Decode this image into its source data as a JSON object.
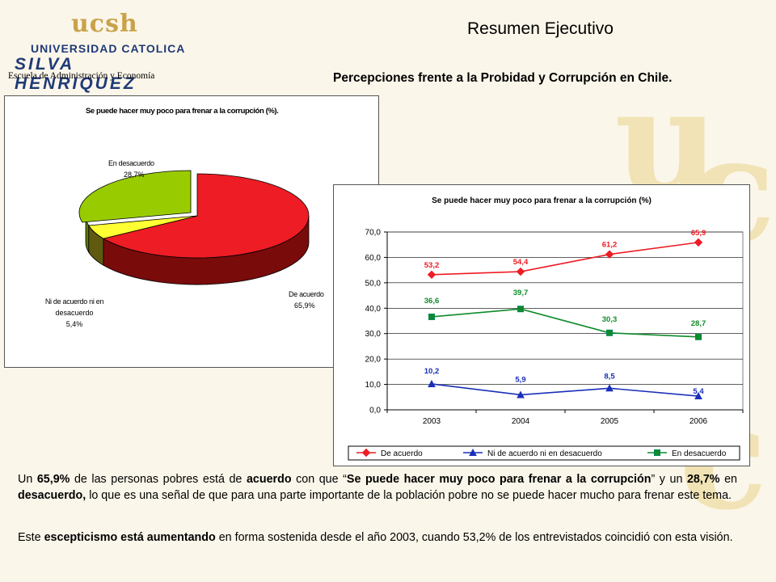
{
  "header": {
    "logo_top": "ucsh",
    "logo_univ": "UNIVERSIDAD CATOLICA",
    "logo_name": "SILVA HENRIQUEZ",
    "school": "Escuela de Administración y Economía",
    "title": "Resumen Ejecutivo",
    "subtitle": "Percepciones frente a la Probidad y Corrupción en Chile."
  },
  "colors": {
    "acuerdo": "#ee1c24",
    "acuerdo_dark": "#7a0b0b",
    "ni": "#1a2fb8",
    "ni_dark": "#5f5a10",
    "ni_pie": "#ffff33",
    "desacuerdo": "#0f8a2a",
    "desacuerdo_pie": "#99cc00",
    "desacuerdo_pie_dark": "#5d7a00"
  },
  "chart_data": [
    {
      "type": "pie",
      "title": "Se puede hacer muy poco para frenar a la corrupción (%).",
      "slices": [
        {
          "label": "De acuerdo",
          "value": 65.9,
          "value_label": "65,9%"
        },
        {
          "label": "Ni de acuerdo ni en desacuerdo",
          "label_lines": [
            "Ni de acuerdo ni en",
            "desacuerdo"
          ],
          "value": 5.4,
          "value_label": "5,4%"
        },
        {
          "label": "En desacuerdo",
          "value": 28.7,
          "value_label": "28,7%"
        }
      ]
    },
    {
      "type": "line",
      "title": "Se puede hacer muy poco para frenar a la corrupción (%)",
      "categories": [
        "2003",
        "2004",
        "2005",
        "2006"
      ],
      "ylim": [
        0,
        70
      ],
      "yticks": [
        "0,0",
        "10,0",
        "20,0",
        "30,0",
        "40,0",
        "50,0",
        "60,0",
        "70,0"
      ],
      "grid": true,
      "legend": "bottom",
      "series": [
        {
          "name": "De acuerdo",
          "values": [
            53.2,
            54.4,
            61.2,
            65.9
          ],
          "labels": [
            "53,2",
            "54,4",
            "61,2",
            "65,9"
          ]
        },
        {
          "name": "Ni de acuerdo ni en desacuerdo",
          "values": [
            10.2,
            5.9,
            8.5,
            5.4
          ],
          "labels": [
            "10,2",
            "5,9",
            "8,5",
            "5,4"
          ]
        },
        {
          "name": "En desacuerdo",
          "values": [
            36.6,
            39.7,
            30.3,
            28.7
          ],
          "labels": [
            "36,6",
            "39,7",
            "30,3",
            "28,7"
          ]
        }
      ]
    }
  ],
  "body_text": {
    "p1_a": "Un ",
    "p1_b": "65,9%",
    "p1_c": " de las personas pobres está de ",
    "p1_d": "acuerdo",
    "p1_e": " con que “",
    "p1_f": "Se puede hacer muy poco para frenar a la corrupción",
    "p1_g": "” y un ",
    "p1_h": "28,7%",
    "p1_i": " en ",
    "p1_j": "desacuerdo,",
    "p1_k": " lo que es una señal de que para una parte importante de la población pobre no se puede hacer mucho para frenar este tema.",
    "p2_a": "Este ",
    "p2_b": "escepticismo está aumentando",
    "p2_c": " en forma sostenida desde el año 2003, cuando 53,2% de los entrevistados coincidió con esta visión."
  }
}
